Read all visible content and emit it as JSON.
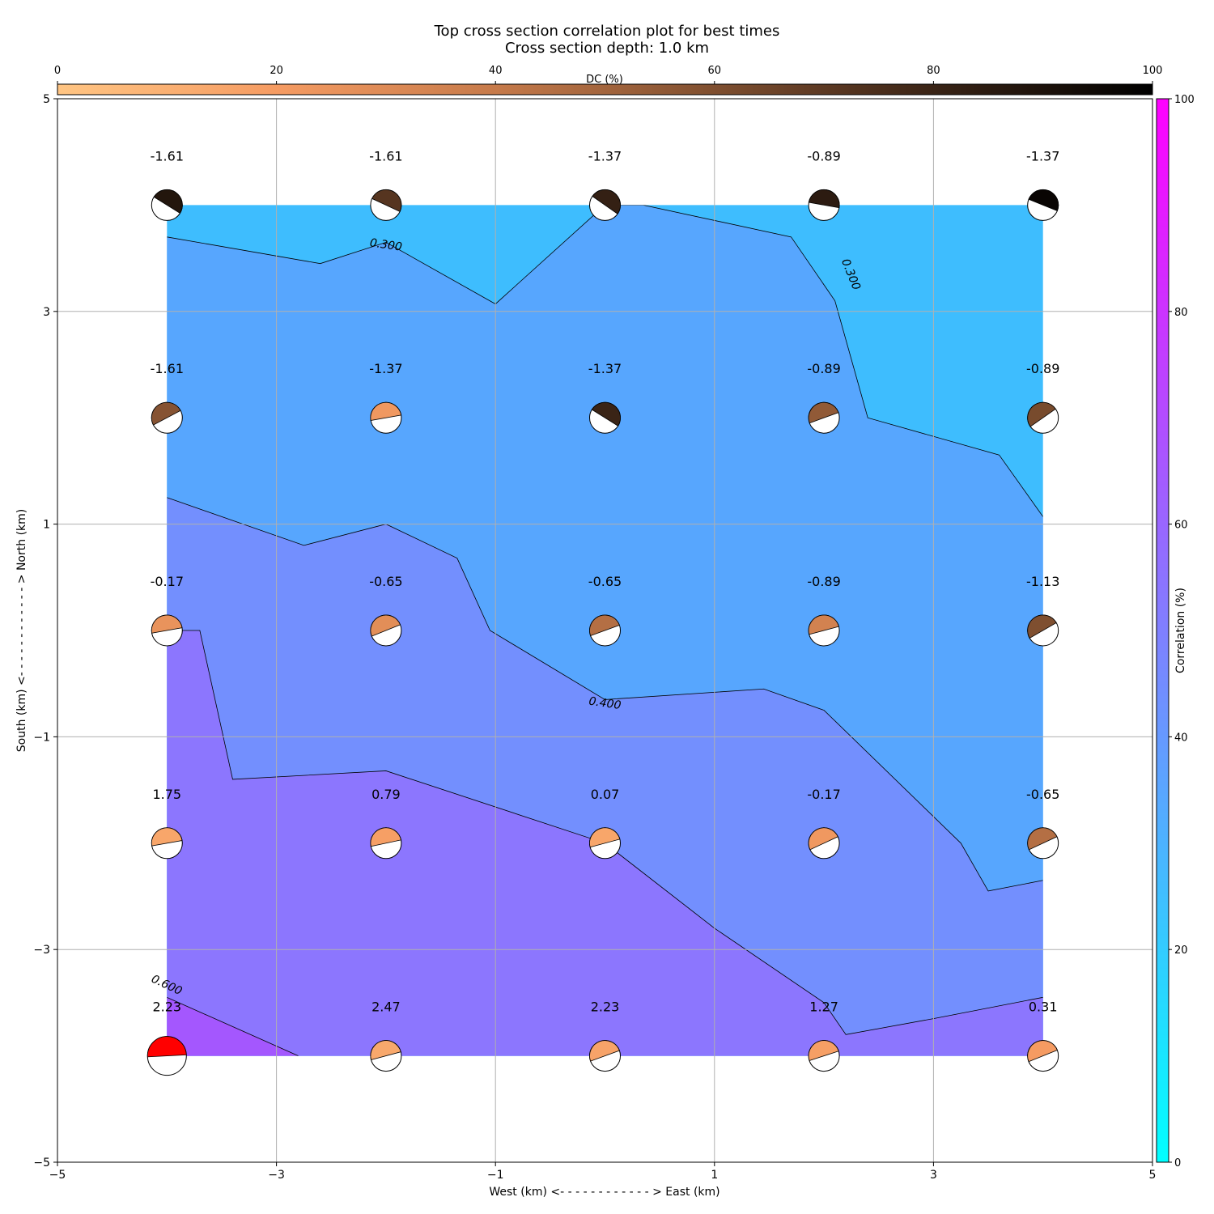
{
  "chart_data": {
    "type": "contour",
    "title": "Top cross section correlation plot for best times",
    "subtitle": "Cross section depth: 1.0 km",
    "xlabel": "West (km) <- - - - - - - - - - - - > East (km)",
    "ylabel": "South (km) <- - - - - - - - - - - - > North (km)",
    "xlim": [
      -5,
      5
    ],
    "ylim": [
      -5,
      5
    ],
    "xticks": [
      -5,
      -3,
      -1,
      1,
      3,
      5
    ],
    "yticks": [
      -5,
      -3,
      -1,
      1,
      3,
      5
    ],
    "xtick_labels": [
      "−5",
      "−3",
      "−1",
      "1",
      "3",
      "5"
    ],
    "ytick_labels": [
      "−5",
      "−3",
      "−1",
      "1",
      "3",
      "5"
    ],
    "grid": true,
    "x": [
      -4,
      -2,
      0,
      2,
      4
    ],
    "y": [
      4,
      2,
      0,
      -2,
      -4
    ],
    "values": [
      [
        "-1.61",
        "-1.61",
        "-1.37",
        "-0.89",
        "-1.37"
      ],
      [
        "-1.61",
        "-1.37",
        "-1.37",
        "-0.89",
        "-0.89"
      ],
      [
        "-0.17",
        "-0.65",
        "-0.65",
        "-0.89",
        "-1.13"
      ],
      [
        "1.75",
        "0.79",
        "0.07",
        "-0.17",
        "-0.65"
      ],
      [
        "2.23",
        "2.47",
        "2.23",
        "1.27",
        "0.31"
      ]
    ],
    "dc_percent": [
      [
        88,
        72,
        82,
        85,
        97
      ],
      [
        58,
        22,
        80,
        55,
        62
      ],
      [
        25,
        28,
        45,
        35,
        60
      ],
      [
        15,
        18,
        15,
        22,
        45
      ],
      [
        0,
        14,
        16,
        18,
        20
      ]
    ],
    "best_marker": {
      "x": -4,
      "y": -4,
      "color": "#ff0000"
    },
    "contour_levels": [
      {
        "lo": null,
        "hi": 0.3,
        "color": "#3ebdfe"
      },
      {
        "lo": 0.3,
        "hi": 0.4,
        "color": "#57a6fe"
      },
      {
        "lo": 0.4,
        "hi": 0.5,
        "color": "#738ffe"
      },
      {
        "lo": 0.5,
        "hi": 0.6,
        "color": "#8c76fe"
      },
      {
        "lo": 0.6,
        "hi": null,
        "color": "#a457fe"
      }
    ],
    "contour_lines": [
      {
        "level": 0.3,
        "label": "0.300",
        "points": [
          [
            -4,
            3.7
          ],
          [
            -2.6,
            3.45
          ],
          [
            -2,
            3.65
          ],
          [
            -1,
            3.07
          ],
          [
            0,
            4
          ],
          [
            0.35,
            4
          ],
          [
            1.7,
            3.7
          ],
          [
            2.1,
            3.1
          ],
          [
            2.4,
            2
          ],
          [
            3.6,
            1.65
          ],
          [
            4,
            1.07
          ]
        ]
      },
      {
        "level": 0.4,
        "label": "0.400",
        "points": [
          [
            -4,
            1.25
          ],
          [
            -2.75,
            0.8
          ],
          [
            -2,
            1
          ],
          [
            -1.35,
            0.68
          ],
          [
            -1.05,
            0
          ],
          [
            0,
            -0.65
          ],
          [
            1.45,
            -0.55
          ],
          [
            2,
            -0.75
          ],
          [
            3.25,
            -2
          ],
          [
            3.5,
            -2.45
          ],
          [
            4,
            -2.35
          ]
        ]
      },
      {
        "level": 0.5,
        "label": "",
        "points": [
          [
            -4,
            0
          ],
          [
            -3.7,
            0
          ],
          [
            -3.4,
            -1.4
          ],
          [
            -2,
            -1.32
          ],
          [
            0,
            -2
          ],
          [
            1,
            -2.8
          ],
          [
            2,
            -3.5
          ],
          [
            2.2,
            -3.8
          ],
          [
            3,
            -3.65
          ],
          [
            4,
            -3.45
          ]
        ]
      },
      {
        "level": 0.6,
        "label": "0.600",
        "points": [
          [
            -4,
            -3.45
          ],
          [
            -2.8,
            -4
          ]
        ]
      }
    ],
    "dc_colorbar": {
      "label": "DC (%)",
      "range": [
        0,
        100
      ],
      "ticks": [
        0,
        20,
        40,
        60,
        80,
        100
      ],
      "colors": [
        "#ffc583",
        "#f59b62",
        "#c67a4a",
        "#7f4f30",
        "#3a2416",
        "#000000"
      ]
    },
    "correlation_colorbar": {
      "label": "Correlation (%)",
      "range": [
        0,
        100
      ],
      "ticks": [
        0,
        20,
        40,
        60,
        80,
        100
      ],
      "colors": [
        "#00ffff",
        "#ff00ff"
      ]
    }
  }
}
